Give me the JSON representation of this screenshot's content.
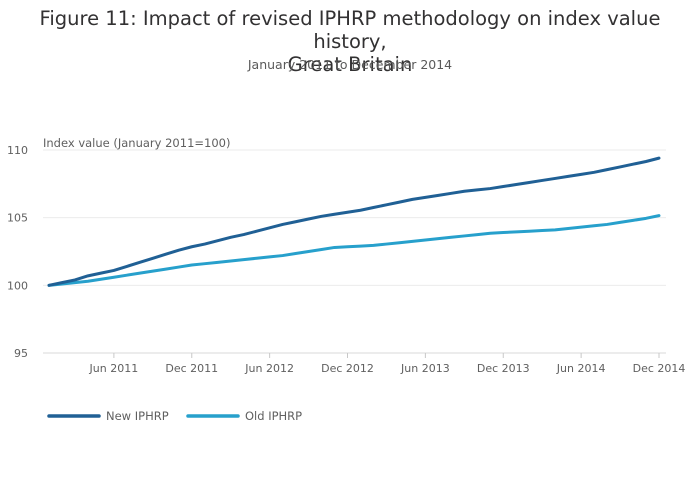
{
  "header": {
    "title_line1": "Figure 11: Impact of revised IPHRP methodology on index value history,",
    "title_line2": "Great Britain",
    "subtitle": "January 2011 to December 2014"
  },
  "chart_data": {
    "type": "line",
    "ylabel": "Index value (January 2011=100)",
    "ylim": [
      95,
      110
    ],
    "yticks": [
      95,
      100,
      105,
      110
    ],
    "x_start": "Jan 2011",
    "x_end": "Dec 2014",
    "x_ticks": [
      {
        "index": 5,
        "label": "Jun 2011"
      },
      {
        "index": 11,
        "label": "Dec 2011"
      },
      {
        "index": 17,
        "label": "Jun 2012"
      },
      {
        "index": 23,
        "label": "Dec 2012"
      },
      {
        "index": 29,
        "label": "Jun 2013"
      },
      {
        "index": 35,
        "label": "Dec 2013"
      },
      {
        "index": 41,
        "label": "Jun 2014"
      },
      {
        "index": 47,
        "label": "Dec 2014"
      }
    ],
    "grid": true,
    "legend_position": "bottom-left",
    "series": [
      {
        "name": "New IPHRP",
        "color": "#206095",
        "values": [
          100.0,
          100.2,
          100.4,
          100.7,
          100.9,
          101.1,
          101.4,
          101.7,
          102.0,
          102.3,
          102.6,
          102.85,
          103.05,
          103.3,
          103.55,
          103.75,
          104.0,
          104.25,
          104.5,
          104.7,
          104.9,
          105.1,
          105.25,
          105.4,
          105.55,
          105.75,
          105.95,
          106.15,
          106.35,
          106.5,
          106.65,
          106.8,
          106.95,
          107.05,
          107.15,
          107.3,
          107.45,
          107.6,
          107.75,
          107.9,
          108.05,
          108.2,
          108.35,
          108.55,
          108.75,
          108.95,
          109.15,
          109.4
        ]
      },
      {
        "name": "Old IPHRP",
        "color": "#27a0cc",
        "values": [
          100.0,
          100.1,
          100.2,
          100.3,
          100.45,
          100.6,
          100.75,
          100.9,
          101.05,
          101.2,
          101.35,
          101.5,
          101.6,
          101.7,
          101.8,
          101.9,
          102.0,
          102.1,
          102.2,
          102.35,
          102.5,
          102.65,
          102.8,
          102.85,
          102.9,
          102.95,
          103.05,
          103.15,
          103.25,
          103.35,
          103.45,
          103.55,
          103.65,
          103.75,
          103.85,
          103.9,
          103.95,
          104.0,
          104.05,
          104.1,
          104.2,
          104.3,
          104.4,
          104.5,
          104.65,
          104.8,
          104.95,
          105.15
        ]
      }
    ]
  }
}
